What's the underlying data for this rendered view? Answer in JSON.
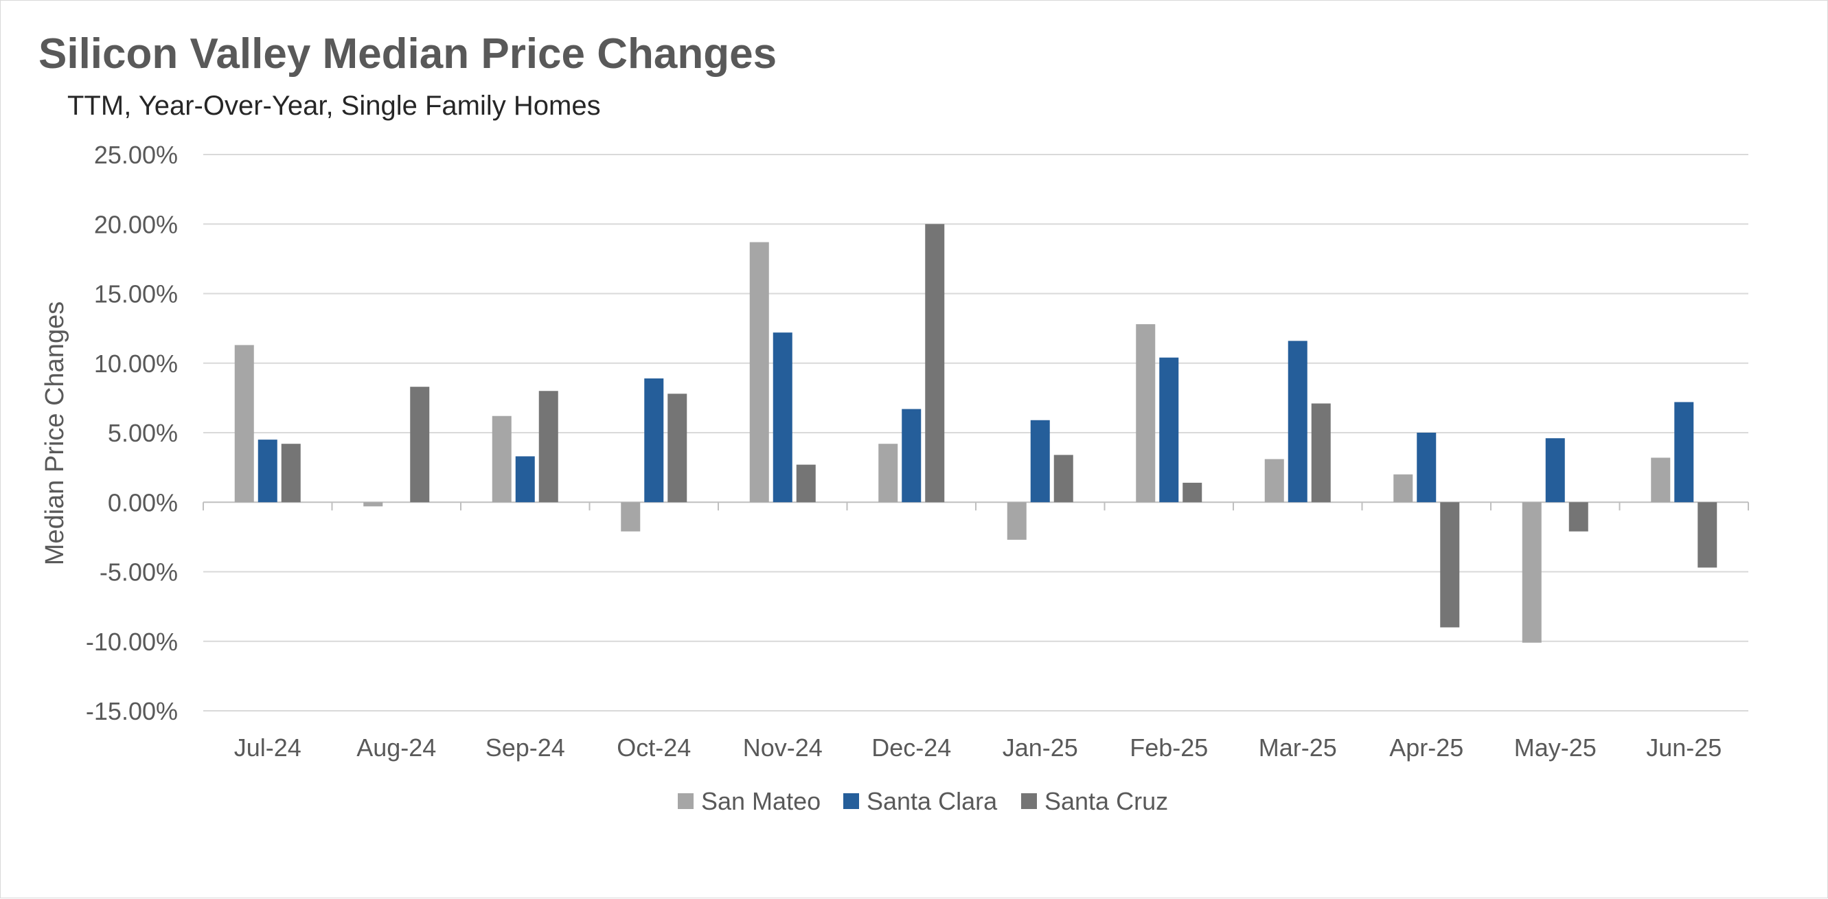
{
  "chart_data": {
    "type": "bar",
    "title": "Silicon Valley Median Price Changes",
    "subtitle": "TTM, Year-Over-Year, Single Family Homes",
    "xlabel": "",
    "ylabel": "Median Price Changes",
    "ylim": [
      -15,
      25
    ],
    "yticks": [
      25,
      20,
      15,
      10,
      5,
      0,
      -5,
      -10,
      -15
    ],
    "ytick_labels": [
      "25.00%",
      "20.00%",
      "15.00%",
      "10.00%",
      "5.00%",
      "0.00%",
      "-5.00%",
      "-10.00%",
      "-15.00%"
    ],
    "grid": true,
    "legend_position": "bottom",
    "categories": [
      "Jul-24",
      "Aug-24",
      "Sep-24",
      "Oct-24",
      "Nov-24",
      "Dec-24",
      "Jan-25",
      "Feb-25",
      "Mar-25",
      "Apr-25",
      "May-25",
      "Jun-25"
    ],
    "series": [
      {
        "name": "San Mateo",
        "color": "#a6a6a6",
        "values": [
          11.3,
          -0.3,
          6.2,
          -2.1,
          18.7,
          4.2,
          -2.7,
          12.8,
          3.1,
          2.0,
          -10.1,
          3.2
        ]
      },
      {
        "name": "Santa Clara",
        "color": "#255e9a",
        "values": [
          4.5,
          0,
          3.3,
          8.9,
          12.2,
          6.7,
          5.9,
          10.4,
          11.6,
          5.0,
          4.6,
          7.2
        ]
      },
      {
        "name": "Santa Cruz",
        "color": "#757575",
        "values": [
          4.2,
          8.3,
          8.0,
          7.8,
          2.7,
          20.0,
          3.4,
          1.4,
          7.1,
          -9.0,
          -2.1,
          -4.7
        ]
      }
    ]
  }
}
